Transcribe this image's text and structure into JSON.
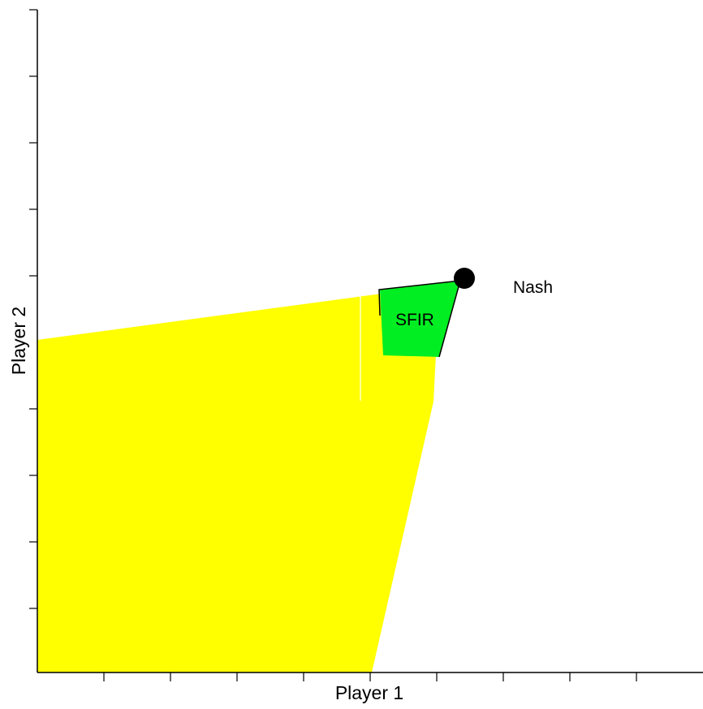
{
  "diagram": {
    "x_axis_label": "Player 1",
    "y_axis_label": "Player 2",
    "nash_label": "Nash",
    "sfir_label": "SFIR",
    "colors": {
      "feasible_region": "#ffff00",
      "sfir_region": "#00ee22",
      "nash_point": "#000000",
      "axes": "#000000"
    }
  }
}
